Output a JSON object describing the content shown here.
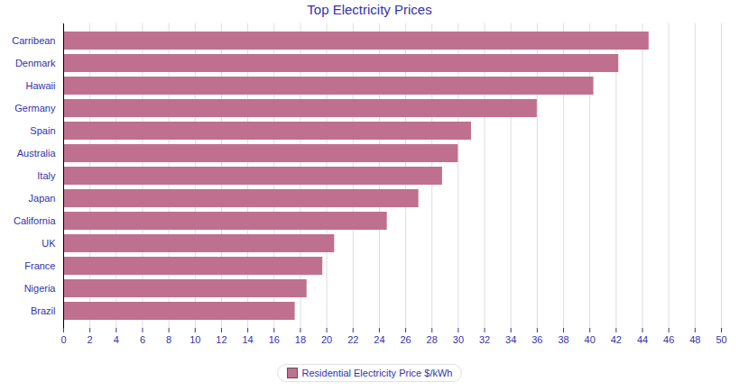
{
  "chart_data": {
    "type": "bar",
    "title": "Top Electricity Prices",
    "orientation": "horizontal",
    "categories": [
      "Carribean",
      "Denmark",
      "Hawaii",
      "Germany",
      "Spain",
      "Australia",
      "Italy",
      "Japan",
      "California",
      "UK",
      "France",
      "Nigeria",
      "Brazil"
    ],
    "series": [
      {
        "name": "Residential Electricity Price $/kWh",
        "color": "#c0708f",
        "values": [
          44.5,
          42.2,
          40.3,
          36,
          31,
          30,
          28.8,
          27,
          24.6,
          20.6,
          19.7,
          18.5,
          17.6
        ]
      }
    ],
    "xlim": [
      0,
      50
    ],
    "xticks": [
      0,
      2,
      4,
      6,
      8,
      10,
      12,
      14,
      16,
      18,
      20,
      22,
      24,
      26,
      28,
      30,
      32,
      34,
      36,
      38,
      40,
      42,
      44,
      46,
      48,
      50
    ],
    "grid": true,
    "legend": "bottom"
  }
}
